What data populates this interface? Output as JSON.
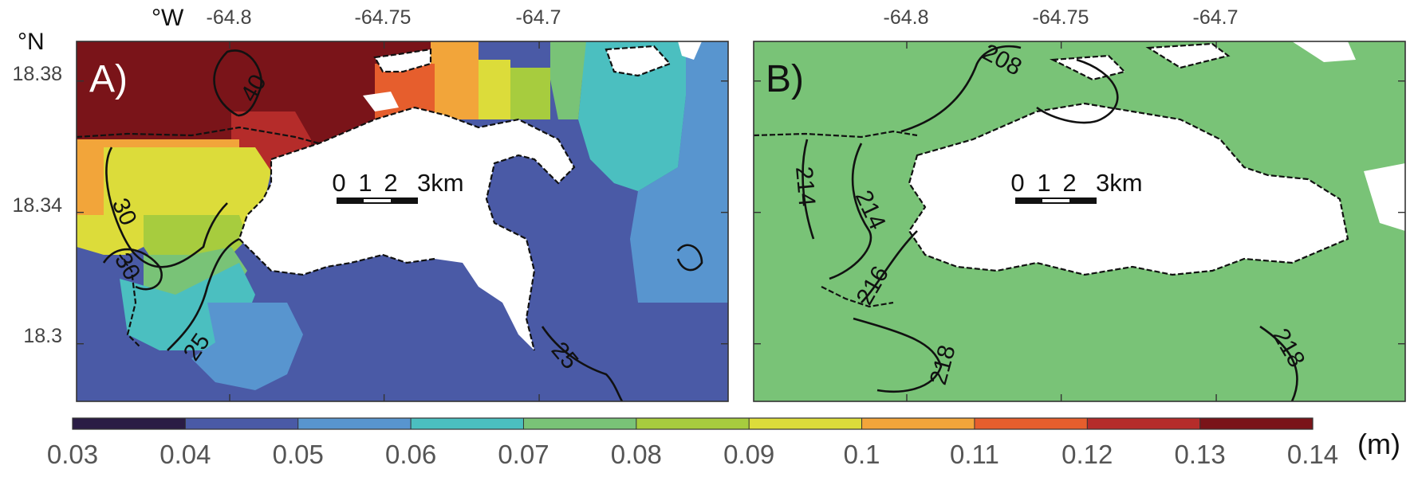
{
  "axes": {
    "lon_unit_label": "°W",
    "lat_unit_label": "°N",
    "lon_ticks": [
      "-64.8",
      "-64.75",
      "-64.7"
    ],
    "lat_ticks": [
      "18.38",
      "18.34",
      "18.3"
    ]
  },
  "panels": [
    {
      "label": "A)",
      "scale_bar": {
        "ticks": [
          "0",
          "1",
          "2"
        ],
        "end_label": "3km"
      },
      "contour_labels": [
        "40",
        "30",
        "30",
        "25",
        "25"
      ]
    },
    {
      "label": "B)",
      "scale_bar": {
        "ticks": [
          "0",
          "1",
          "2"
        ],
        "end_label": "3km"
      },
      "contour_labels": [
        "208",
        "214",
        "214",
        "216",
        "218",
        "218"
      ]
    }
  ],
  "colorbar": {
    "unit": "(m)",
    "tick_labels": [
      "0.03",
      "0.04",
      "0.05",
      "0.06",
      "0.07",
      "0.08",
      "0.09",
      "0.1",
      "0.11",
      "0.12",
      "0.13",
      "0.14"
    ],
    "colors": [
      "#2a1c45",
      "#4a5aa6",
      "#5895cf",
      "#4bbfc0",
      "#79c377",
      "#a7cc3e",
      "#dcdc3a",
      "#f2a53a",
      "#e65e2d",
      "#b52c2a",
      "#7a1419"
    ]
  },
  "land_color": "#ffffff",
  "coast_color": "#111111"
}
